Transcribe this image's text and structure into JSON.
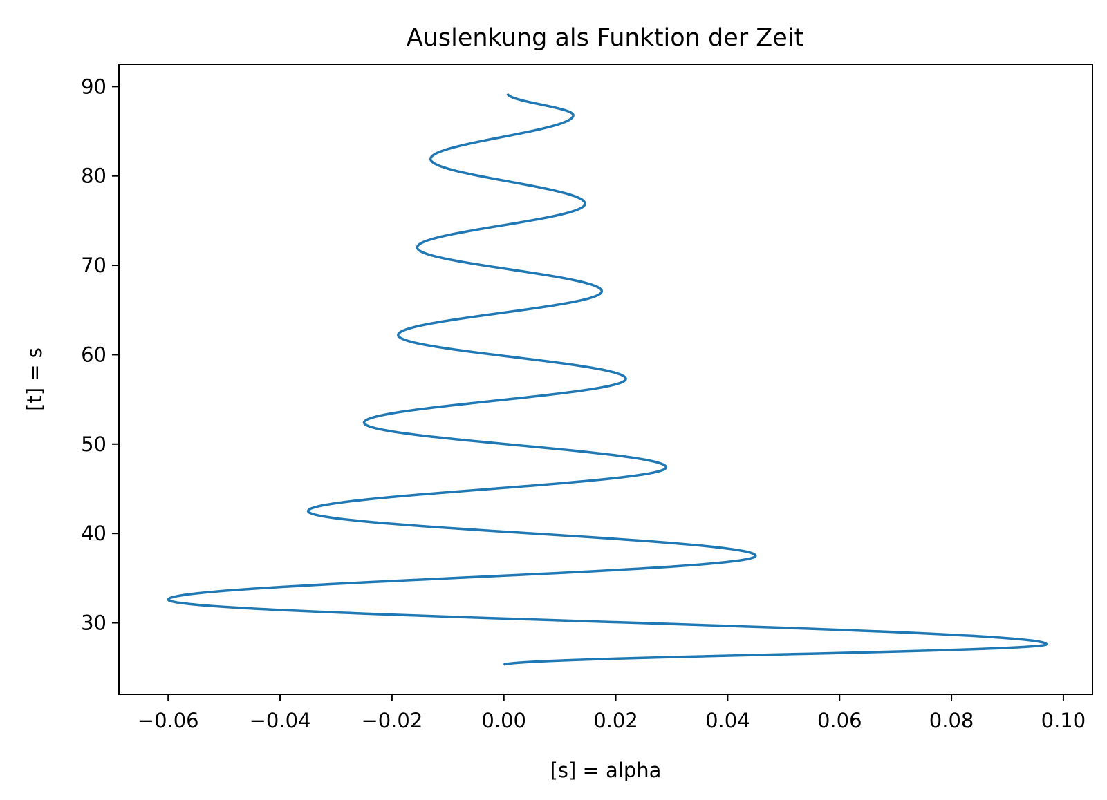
{
  "chart_data": {
    "type": "line",
    "title": "Auslenkung als Funktion der Zeit",
    "xlabel": "[s] = alpha",
    "ylabel": "[t] = s",
    "xlim": [
      -0.0688,
      0.1052
    ],
    "ylim": [
      22.0,
      92.5
    ],
    "xticks": [
      -0.06,
      -0.04,
      -0.02,
      0.0,
      0.02,
      0.04,
      0.06,
      0.08,
      0.1
    ],
    "xtick_labels": [
      "−0.06",
      "−0.04",
      "−0.02",
      "0.00",
      "0.02",
      "0.04",
      "0.06",
      "0.08",
      "0.10"
    ],
    "yticks": [
      30,
      40,
      50,
      60,
      70,
      80,
      90
    ],
    "ytick_labels": [
      "30",
      "40",
      "50",
      "60",
      "70",
      "80",
      "90"
    ],
    "grid": false,
    "series": [
      {
        "color": "#1f77b4",
        "points": [
          [
            0.0,
            25.3
          ],
          [
            0.097,
            27.6
          ],
          [
            -0.06,
            32.6
          ],
          [
            0.045,
            37.5
          ],
          [
            -0.035,
            42.5
          ],
          [
            0.029,
            47.4
          ],
          [
            -0.025,
            52.4
          ],
          [
            0.0218,
            57.3
          ],
          [
            -0.0189,
            62.2
          ],
          [
            0.0175,
            67.1
          ],
          [
            -0.0155,
            72.0
          ],
          [
            0.0145,
            76.9
          ],
          [
            -0.0131,
            81.9
          ],
          [
            0.0124,
            86.8
          ],
          [
            0.0007,
            89.2
          ]
        ]
      }
    ]
  }
}
